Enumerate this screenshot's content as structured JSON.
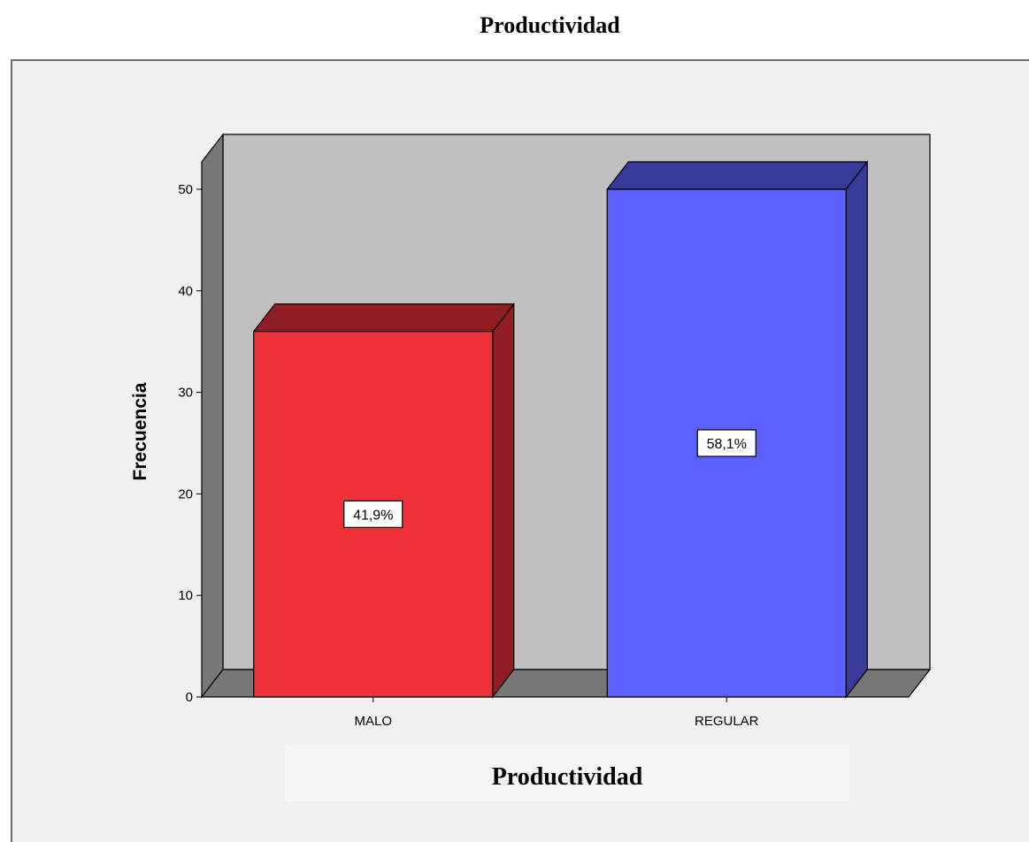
{
  "chart_data": {
    "type": "bar",
    "title": "Productividad",
    "xlabel": "Productividad",
    "ylabel": "Frecuencia",
    "categories": [
      "MALO",
      "REGULAR"
    ],
    "values": [
      36,
      50
    ],
    "data_labels": [
      "41,9%",
      "58,1%"
    ],
    "colors": [
      "#ef3038",
      "#5c60ff"
    ],
    "ylim": [
      0,
      50
    ],
    "y_ticks": [
      0,
      10,
      20,
      30,
      40,
      50
    ],
    "grid": false,
    "style": "3d"
  }
}
